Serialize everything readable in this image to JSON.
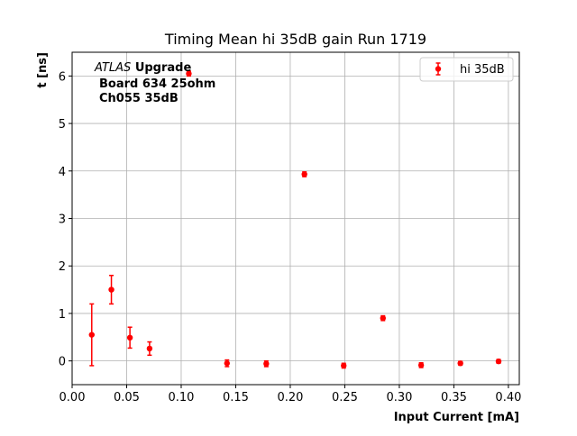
{
  "chart_data": {
    "type": "scatter",
    "title": "Timing Mean hi 35dB gain Run 1719",
    "xlabel": "Input Current [mA]",
    "ylabel": "t [ns]",
    "xlim": [
      0.0,
      0.41
    ],
    "ylim": [
      -0.5,
      6.5
    ],
    "xticks": [
      "0.00",
      "0.05",
      "0.10",
      "0.15",
      "0.20",
      "0.25",
      "0.30",
      "0.35",
      "0.40"
    ],
    "yticks": [
      "0",
      "1",
      "2",
      "3",
      "4",
      "5",
      "6"
    ],
    "grid": true,
    "legend_position": "top-right",
    "annotation": {
      "line1_italic": "ATLAS",
      "line1_bold": "Upgrade",
      "line2": "Board 634 25ohm",
      "line3": "Ch055 35dB"
    },
    "series": [
      {
        "name": "hi 35dB",
        "color": "#ff0000",
        "marker": "circle",
        "points": [
          {
            "x": 0.018,
            "y": 0.55,
            "err": 0.65
          },
          {
            "x": 0.036,
            "y": 1.5,
            "err": 0.3
          },
          {
            "x": 0.053,
            "y": 0.49,
            "err": 0.22
          },
          {
            "x": 0.071,
            "y": 0.26,
            "err": 0.14
          },
          {
            "x": 0.107,
            "y": 6.05,
            "err": 0.05
          },
          {
            "x": 0.142,
            "y": -0.05,
            "err": 0.07
          },
          {
            "x": 0.178,
            "y": -0.06,
            "err": 0.06
          },
          {
            "x": 0.213,
            "y": 3.93,
            "err": 0.05
          },
          {
            "x": 0.249,
            "y": -0.1,
            "err": 0.05
          },
          {
            "x": 0.285,
            "y": 0.9,
            "err": 0.05
          },
          {
            "x": 0.32,
            "y": -0.09,
            "err": 0.05
          },
          {
            "x": 0.356,
            "y": -0.05,
            "err": 0.04
          },
          {
            "x": 0.391,
            "y": -0.01,
            "err": 0.04
          }
        ]
      }
    ]
  }
}
